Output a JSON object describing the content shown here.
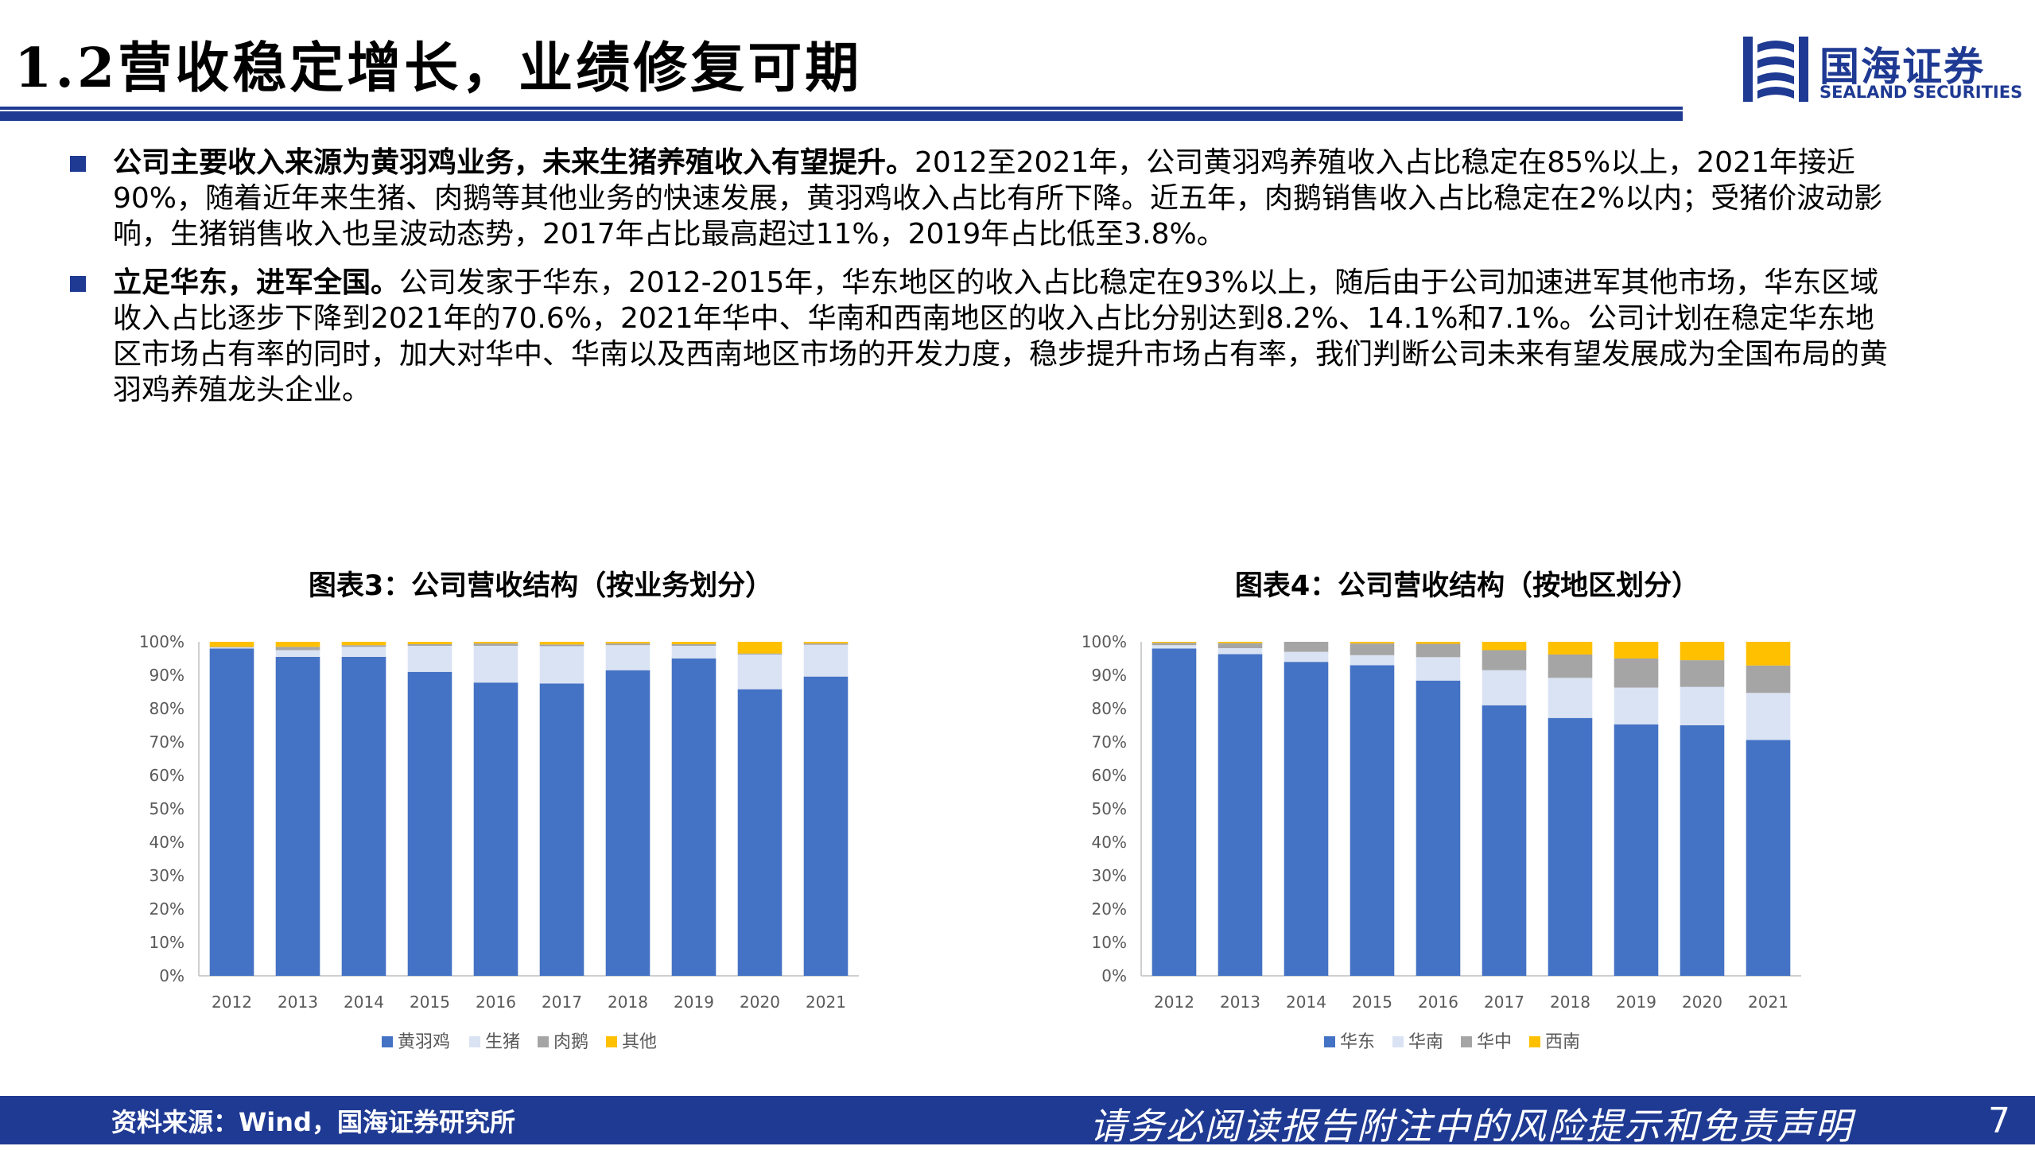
{
  "header": {
    "title": "1.2营收稳定增长，业绩修复可期",
    "logo_cn": "国海证券",
    "logo_en": "SEALAND SECURITIES"
  },
  "bullets": [
    {
      "bold": "公司主要收入来源为黄羽鸡业务，未来生猪养殖收入有望提升。",
      "text": "2012至2021年，公司黄羽鸡养殖收入占比稳定在85%以上，2021年接近90%，随着近年来生猪、肉鹅等其他业务的快速发展，黄羽鸡收入占比有所下降。近五年，肉鹅销售收入占比稳定在2%以内；受猪价波动影响，生猪销售收入也呈波动态势，2017年占比最高超过11%，2019年占比低至3.8%。"
    },
    {
      "bold": "立足华东，进军全国。",
      "text": "公司发家于华东，2012-2015年，华东地区的收入占比稳定在93%以上，随后由于公司加速进军其他市场，华东区域收入占比逐步下降到2021年的70.6%，2021年华中、华南和西南地区的收入占比分别达到8.2%、14.1%和7.1%。公司计划在稳定华东地区市场占有率的同时，加大对华中、华南以及西南地区市场的开发力度，稳步提升市场占有率，我们判断公司未来有望发展成为全国布局的黄羽鸡养殖龙头企业。"
    }
  ],
  "colors": {
    "brand": "#1f3a93",
    "series": [
      "#4472c4",
      "#dae3f3",
      "#a5a5a5",
      "#ffc000"
    ]
  },
  "chart_data": [
    {
      "type": "bar",
      "stacked": true,
      "title": "图表3：公司营收结构（按业务划分）",
      "categories": [
        "2012",
        "2013",
        "2014",
        "2015",
        "2016",
        "2017",
        "2018",
        "2019",
        "2020",
        "2021"
      ],
      "series": [
        {
          "name": "黄羽鸡",
          "values": [
            98.0,
            95.5,
            95.5,
            91.0,
            87.8,
            87.5,
            91.5,
            95.0,
            85.8,
            89.6
          ]
        },
        {
          "name": "生猪",
          "values": [
            0.3,
            2.0,
            3.0,
            7.8,
            11.0,
            11.2,
            7.5,
            3.8,
            10.4,
            9.5
          ]
        },
        {
          "name": "肉鹅",
          "values": [
            0.2,
            1.0,
            0.5,
            0.5,
            0.7,
            0.5,
            0.5,
            0.5,
            0.3,
            0.4
          ]
        },
        {
          "name": "其他",
          "values": [
            1.5,
            1.5,
            1.0,
            0.7,
            0.5,
            0.8,
            0.5,
            0.7,
            3.5,
            0.5
          ]
        }
      ],
      "yticks": [
        "0%",
        "10%",
        "20%",
        "30%",
        "40%",
        "50%",
        "60%",
        "70%",
        "80%",
        "90%",
        "100%"
      ],
      "ylim": [
        0,
        100
      ],
      "legend": "bottom"
    },
    {
      "type": "bar",
      "stacked": true,
      "title": "图表4：公司营收结构（按地区划分）",
      "categories": [
        "2012",
        "2013",
        "2014",
        "2015",
        "2016",
        "2017",
        "2018",
        "2019",
        "2020",
        "2021"
      ],
      "series": [
        {
          "name": "华东",
          "values": [
            98.0,
            96.3,
            94.0,
            93.0,
            88.4,
            81.0,
            77.2,
            75.3,
            75.0,
            70.6
          ]
        },
        {
          "name": "华南",
          "values": [
            1.0,
            1.8,
            3.0,
            3.0,
            7.0,
            10.5,
            12.0,
            11.0,
            11.5,
            14.1
          ]
        },
        {
          "name": "华中",
          "values": [
            0.7,
            1.5,
            3.0,
            3.5,
            4.0,
            6.0,
            7.0,
            8.7,
            8.0,
            8.2
          ]
        },
        {
          "name": "西南",
          "values": [
            0.3,
            0.4,
            0.0,
            0.5,
            0.6,
            2.5,
            3.8,
            5.0,
            5.5,
            7.1
          ]
        }
      ],
      "yticks": [
        "0%",
        "10%",
        "20%",
        "30%",
        "40%",
        "50%",
        "60%",
        "70%",
        "80%",
        "90%",
        "100%"
      ],
      "ylim": [
        0,
        100
      ],
      "legend": "bottom"
    }
  ],
  "footer": {
    "source": "资料来源：Wind，国海证券研究所",
    "disclaimer": "请务必阅读报告附注中的风险提示和免责声明",
    "page": "7"
  }
}
